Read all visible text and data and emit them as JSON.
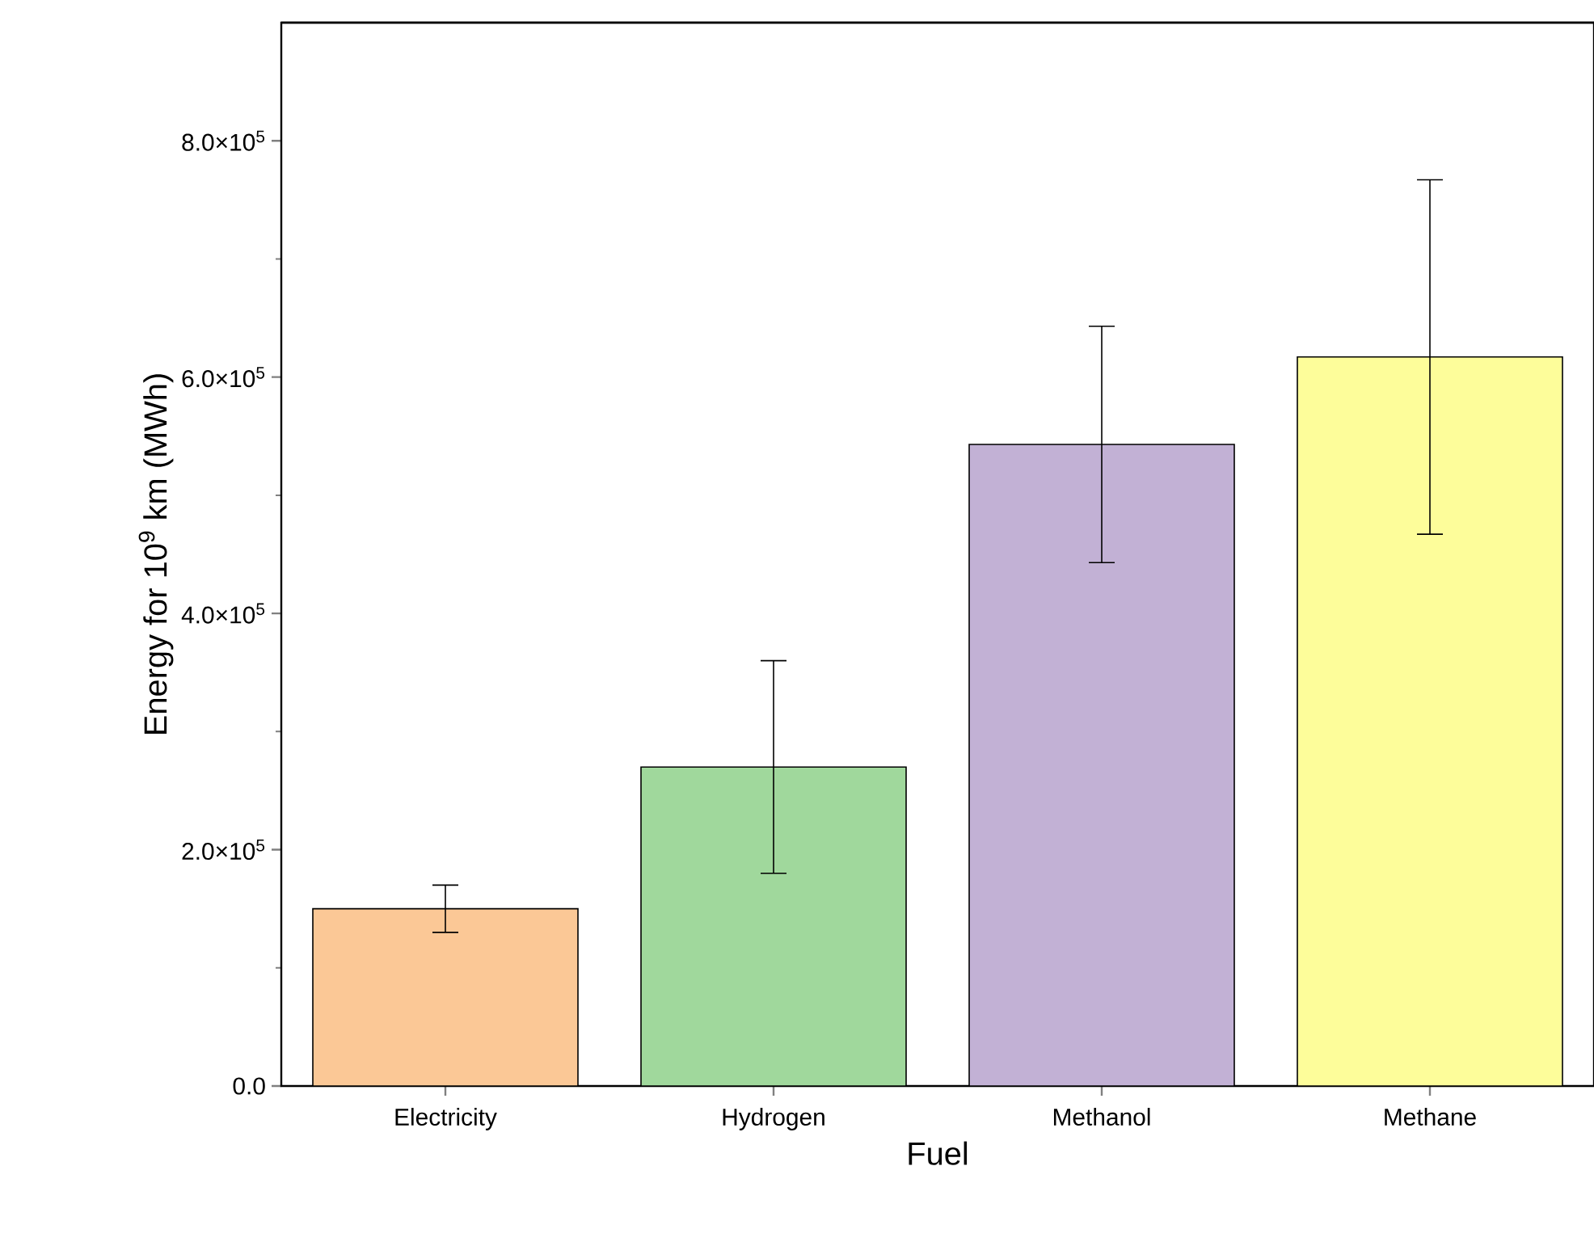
{
  "chart_data": {
    "type": "bar",
    "xlabel": "Fuel",
    "ylabel": "Energy for 10$^{9}$ km (MWh)",
    "categories": [
      "Electricity",
      "Hydrogen",
      "Methanol",
      "Methane"
    ],
    "values": [
      150000,
      270000,
      543000,
      617000
    ],
    "errors": [
      20000,
      90000,
      100000,
      150000
    ],
    "colors": [
      "#fbc896",
      "#a0d89c",
      "#c2b1d5",
      "#fdfd9a"
    ],
    "ylim": [
      0,
      900000
    ],
    "yticks": [
      {
        "value": 0,
        "label": "0.0"
      },
      {
        "value": 200000,
        "label": "2.0×10$^{5}$"
      },
      {
        "value": 400000,
        "label": "4.0×10$^{5}$"
      },
      {
        "value": 600000,
        "label": "6.0×10$^{5}$"
      },
      {
        "value": 800000,
        "label": "8.0×10$^{5}$"
      }
    ],
    "grid": false
  }
}
